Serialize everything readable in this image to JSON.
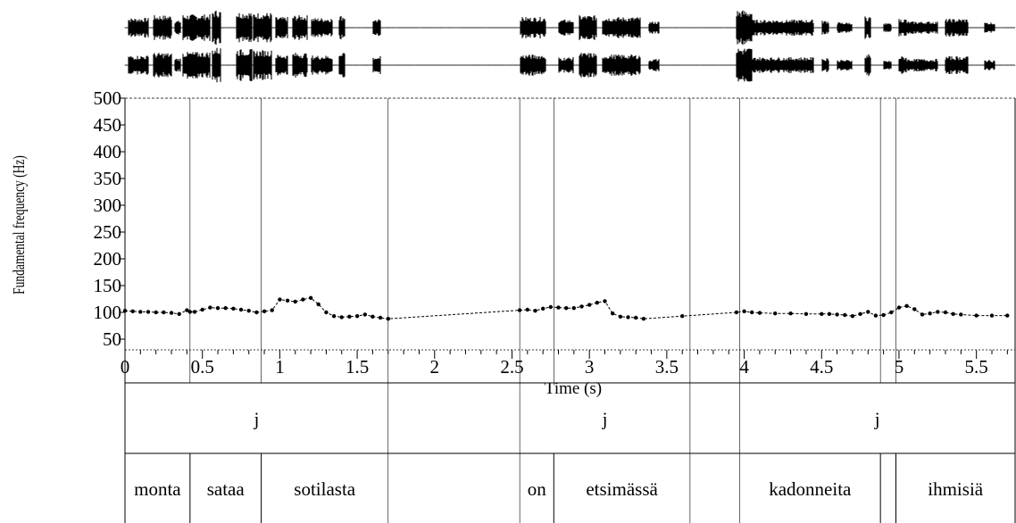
{
  "chart_data": {
    "type": "line",
    "xlabel": "Time (s)",
    "ylabel": "Fundamental frequency (Hz)",
    "xlim": [
      0,
      5.75
    ],
    "ylim": [
      30,
      500
    ],
    "xticks": [
      0,
      0.5,
      1,
      1.5,
      2,
      2.5,
      3,
      3.5,
      4,
      4.5,
      5,
      5.5
    ],
    "xtick_labels": [
      "0",
      "0.5",
      "1",
      "1.5",
      "2",
      "2.5",
      "3",
      "3.5",
      "4",
      "4.5",
      "5",
      "5.5"
    ],
    "yticks": [
      50,
      100,
      150,
      200,
      250,
      300,
      350,
      400,
      450,
      500
    ],
    "ytick_labels": [
      "50",
      "100",
      "150",
      "200",
      "250",
      "300",
      "350",
      "400",
      "450",
      "500"
    ],
    "grid": false,
    "waveform_channels": 2,
    "f0_contour": {
      "x": [
        0.0,
        0.05,
        0.1,
        0.15,
        0.2,
        0.25,
        0.3,
        0.35,
        0.4,
        0.42,
        0.45,
        0.5,
        0.55,
        0.6,
        0.65,
        0.7,
        0.75,
        0.8,
        0.85,
        0.9,
        0.95,
        1.0,
        1.05,
        1.1,
        1.15,
        1.2,
        1.25,
        1.3,
        1.35,
        1.4,
        1.45,
        1.5,
        1.55,
        1.6,
        1.65,
        1.7,
        2.55,
        2.6,
        2.65,
        2.7,
        2.75,
        2.8,
        2.85,
        2.9,
        2.95,
        3.0,
        3.05,
        3.1,
        3.15,
        3.2,
        3.25,
        3.3,
        3.35,
        3.6,
        3.95,
        4.0,
        4.05,
        4.1,
        4.2,
        4.3,
        4.4,
        4.5,
        4.55,
        4.6,
        4.65,
        4.7,
        4.75,
        4.8,
        4.85,
        4.9,
        4.95,
        5.0,
        5.05,
        5.1,
        5.15,
        5.2,
        5.25,
        5.3,
        5.35,
        5.4,
        5.5,
        5.6,
        5.7
      ],
      "y": [
        103,
        102,
        101,
        101,
        100,
        100,
        99,
        97,
        104,
        101,
        101,
        105,
        109,
        108,
        108,
        107,
        105,
        103,
        100,
        102,
        104,
        124,
        122,
        120,
        124,
        127,
        115,
        100,
        93,
        91,
        92,
        93,
        96,
        92,
        90,
        88,
        104,
        105,
        103,
        107,
        110,
        109,
        108,
        108,
        111,
        114,
        118,
        121,
        98,
        92,
        91,
        90,
        88,
        93,
        100,
        102,
        100,
        99,
        98,
        98,
        97,
        97,
        97,
        96,
        95,
        93,
        97,
        101,
        94,
        95,
        100,
        109,
        112,
        106,
        96,
        98,
        101,
        100,
        97,
        96,
        94,
        94,
        94
      ]
    },
    "tiers": [
      {
        "intervals": [
          {
            "start": 0.0,
            "end": 1.7,
            "label": "j"
          },
          {
            "start": 1.7,
            "end": 2.55,
            "label": ""
          },
          {
            "start": 2.55,
            "end": 3.65,
            "label": "j"
          },
          {
            "start": 3.65,
            "end": 3.97,
            "label": ""
          },
          {
            "start": 3.97,
            "end": 5.75,
            "label": "j"
          }
        ]
      },
      {
        "intervals": [
          {
            "start": 0.0,
            "end": 0.42,
            "label": "monta"
          },
          {
            "start": 0.42,
            "end": 0.88,
            "label": "sataa"
          },
          {
            "start": 0.88,
            "end": 1.7,
            "label": "sotilasta"
          },
          {
            "start": 1.7,
            "end": 2.55,
            "label": ""
          },
          {
            "start": 2.55,
            "end": 2.77,
            "label": "on"
          },
          {
            "start": 2.77,
            "end": 3.65,
            "label": "etsimässä"
          },
          {
            "start": 3.65,
            "end": 3.97,
            "label": ""
          },
          {
            "start": 3.97,
            "end": 4.88,
            "label": "kadonneita"
          },
          {
            "start": 4.88,
            "end": 4.98,
            "label": ""
          },
          {
            "start": 4.98,
            "end": 5.75,
            "label": "ihmisiä"
          }
        ]
      }
    ]
  }
}
